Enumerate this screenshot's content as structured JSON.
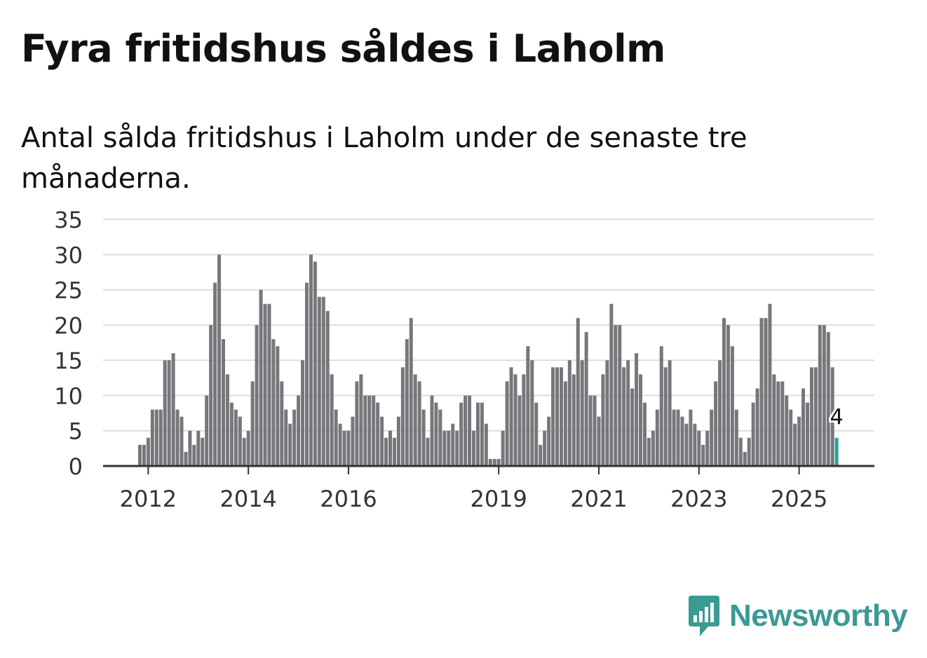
{
  "title": "Fyra fritidshus såldes i Laholm",
  "subtitle": "Antal sålda fritidshus i Laholm under de senaste tre månaderna.",
  "brand": {
    "name": "Newsworthy",
    "color": "#3a9a94",
    "icon": "newsworthy-logo-icon"
  },
  "chart_data": {
    "type": "bar",
    "title": "Fyra fritidshus såldes i Laholm",
    "xlabel": "",
    "ylabel": "",
    "ylim": [
      0,
      35
    ],
    "yticks": [
      "0",
      "5",
      "10",
      "15",
      "20",
      "25",
      "30",
      "35"
    ],
    "xtick_labels": [
      {
        "label": "2012",
        "index": 2
      },
      {
        "label": "2014",
        "index": 26
      },
      {
        "label": "2016",
        "index": 50
      },
      {
        "label": "2019",
        "index": 86
      },
      {
        "label": "2021",
        "index": 110
      },
      {
        "label": "2023",
        "index": 134
      },
      {
        "label": "2025",
        "index": 158
      }
    ],
    "bar_color": "#77767b",
    "highlight_color": "#2aa39a",
    "grid": true,
    "values": [
      3,
      3,
      4,
      8,
      8,
      8,
      15,
      15,
      16,
      8,
      7,
      2,
      5,
      3,
      5,
      4,
      10,
      20,
      26,
      30,
      18,
      13,
      9,
      8,
      7,
      4,
      5,
      12,
      20,
      25,
      23,
      23,
      18,
      17,
      12,
      8,
      6,
      8,
      10,
      15,
      26,
      30,
      29,
      24,
      24,
      22,
      13,
      8,
      6,
      5,
      5,
      7,
      12,
      13,
      10,
      10,
      10,
      9,
      7,
      4,
      5,
      4,
      7,
      14,
      18,
      21,
      13,
      12,
      8,
      4,
      10,
      9,
      8,
      5,
      5,
      6,
      5,
      9,
      10,
      10,
      5,
      9,
      9,
      6,
      1,
      1,
      1,
      5,
      12,
      14,
      13,
      10,
      13,
      17,
      15,
      9,
      3,
      5,
      7,
      14,
      14,
      14,
      12,
      15,
      13,
      21,
      15,
      19,
      10,
      10,
      7,
      13,
      15,
      23,
      20,
      20,
      14,
      15,
      11,
      16,
      13,
      9,
      4,
      5,
      8,
      17,
      14,
      15,
      8,
      8,
      7,
      6,
      8,
      6,
      5,
      3,
      5,
      8,
      12,
      15,
      21,
      20,
      17,
      8,
      4,
      2,
      4,
      9,
      11,
      21,
      21,
      23,
      13,
      12,
      12,
      10,
      8,
      6,
      7,
      11,
      9,
      14,
      14,
      20,
      20,
      19,
      14,
      4
    ],
    "annotation": {
      "label": "4",
      "index": 167,
      "value": 4
    }
  }
}
